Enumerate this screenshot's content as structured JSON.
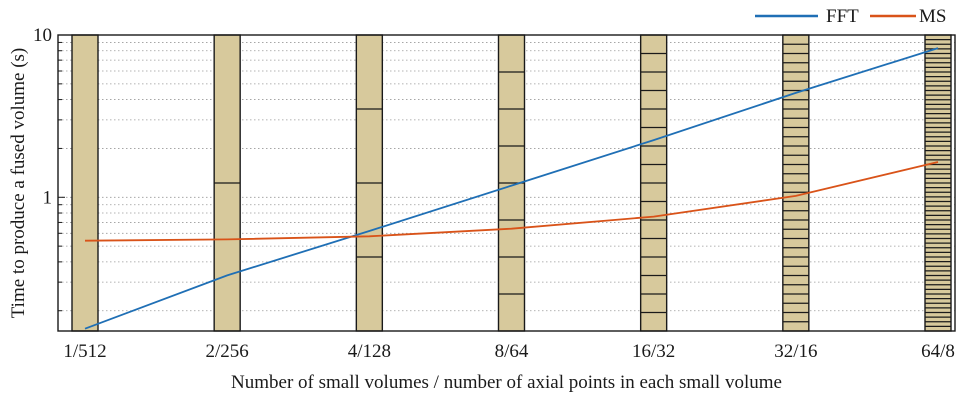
{
  "chart_data": {
    "type": "line",
    "xlabel": "Number of small volumes / number of axial points in each small volume",
    "ylabel": "Time to produce a fused volume (s)",
    "yscale": "log",
    "ylim": [
      0.15,
      10
    ],
    "y_tick_labels": [
      {
        "value": 1,
        "label": "1"
      },
      {
        "value": 10,
        "label": "10"
      }
    ],
    "grid": "horizontal dotted (log minor)",
    "legend_position": "top-right (outside plot)",
    "categories": [
      "1/512",
      "2/256",
      "4/128",
      "8/64",
      "16/32",
      "32/16",
      "64/8"
    ],
    "slices": [
      {
        "category": "1/512",
        "divisions": 1
      },
      {
        "category": "2/256",
        "divisions": 2
      },
      {
        "category": "4/128",
        "divisions": 4
      },
      {
        "category": "8/64",
        "divisions": 8
      },
      {
        "category": "16/32",
        "divisions": 16
      },
      {
        "category": "32/16",
        "divisions": 32
      },
      {
        "category": "64/8",
        "divisions": 64
      }
    ],
    "series": [
      {
        "name": "FFT",
        "color": "#1f6fb5",
        "values": [
          0.155,
          0.33,
          0.62,
          1.18,
          2.25,
          4.4,
          8.3
        ]
      },
      {
        "name": "MS",
        "color": "#d95319",
        "values": [
          0.54,
          0.55,
          0.575,
          0.64,
          0.76,
          1.02,
          1.65
        ]
      }
    ],
    "slice_fill": "#d7c99c",
    "slice_stroke": "#1a1a1a"
  }
}
